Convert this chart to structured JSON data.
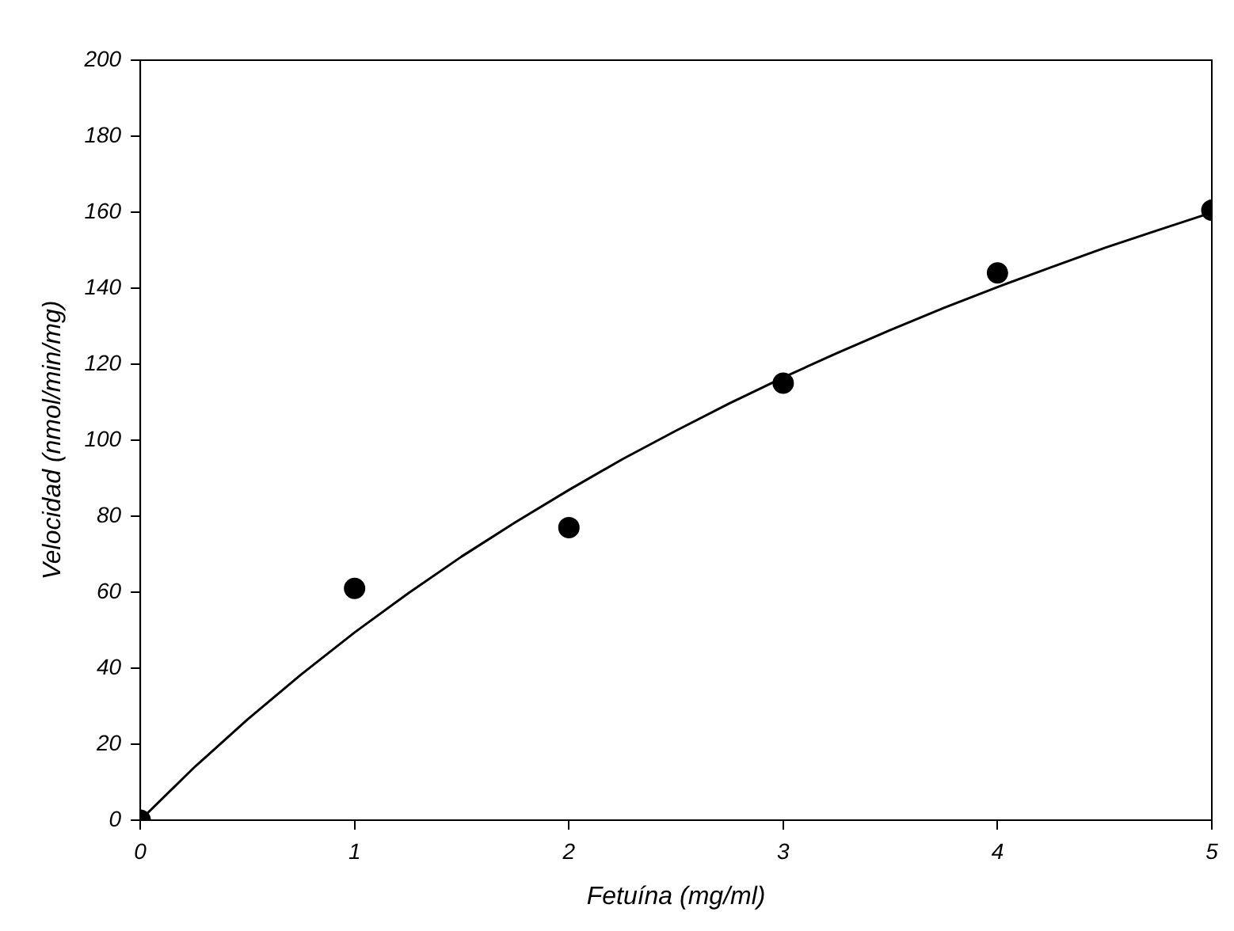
{
  "chart_data": {
    "type": "scatter",
    "xlabel": "Fetuína (mg/ml)",
    "ylabel": "Velocidad (nmol/min/mg)",
    "xlim": [
      0,
      5
    ],
    "xticks": [
      0,
      1,
      2,
      3,
      4,
      5
    ],
    "ylim": [
      0,
      200
    ],
    "yticks": [
      0,
      20,
      40,
      60,
      80,
      100,
      120,
      140,
      160,
      180,
      200
    ],
    "grid": false,
    "legend": false,
    "marker": "circle",
    "series": [
      {
        "type": "scatter",
        "color": "#000000",
        "x": [
          0,
          1,
          2,
          3,
          4,
          5
        ],
        "values": [
          0,
          61,
          77,
          115,
          144,
          160.5
        ]
      },
      {
        "type": "line",
        "color": "#000000",
        "marker": "none",
        "line_style": "solid",
        "x": [
          0,
          0.25,
          0.5,
          0.75,
          1,
          1.25,
          1.5,
          1.75,
          2,
          2.25,
          2.5,
          2.75,
          3,
          3.25,
          3.5,
          3.75,
          4,
          4.25,
          4.5,
          4.75,
          5
        ],
        "values": [
          0,
          13.8,
          26.5,
          38.3,
          49.4,
          59.7,
          69.4,
          78.4,
          86.9,
          95.0,
          102.5,
          109.7,
          116.5,
          122.9,
          129.0,
          134.8,
          140.3,
          145.5,
          150.6,
          155.3,
          159.9
        ]
      }
    ]
  }
}
